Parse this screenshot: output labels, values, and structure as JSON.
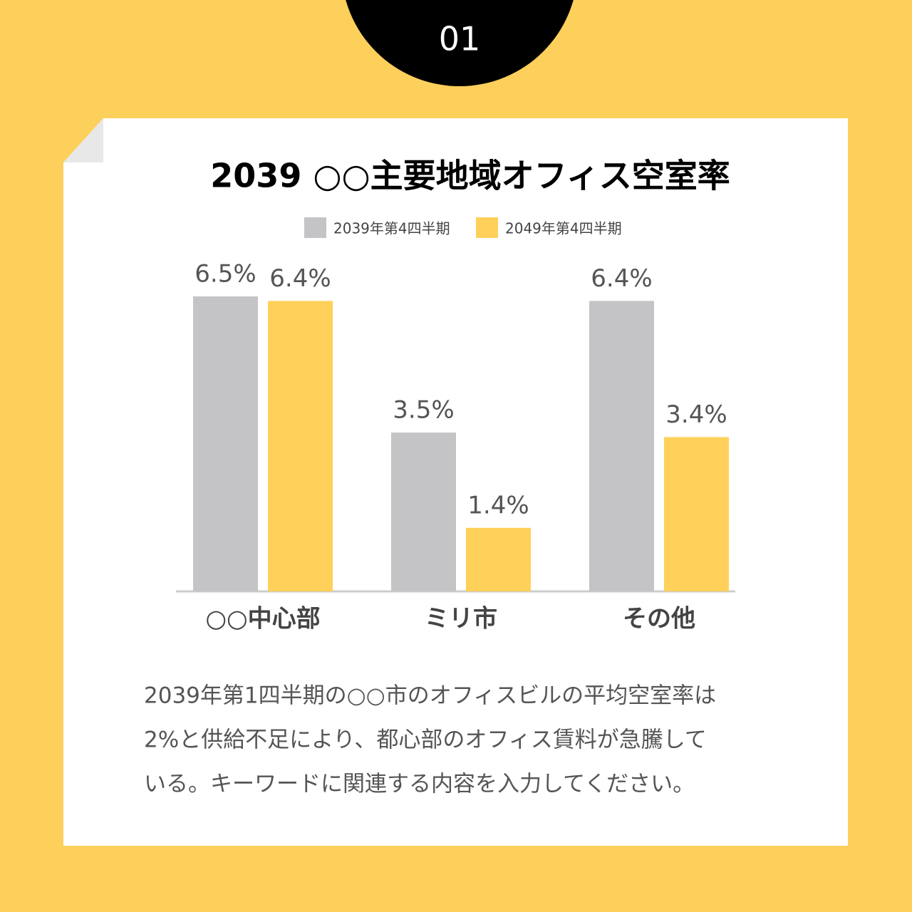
{
  "badge": "01",
  "chart_data": {
    "type": "bar",
    "title": "2039 ○○主要地域オフィス空室率",
    "categories": [
      "○○中心部",
      "ミリ市",
      "その他"
    ],
    "series": [
      {
        "name": "2039年第4四半期",
        "color": "#c4c3c5",
        "values": [
          6.5,
          3.5,
          6.4
        ],
        "value_labels": [
          "6.5%",
          "3.5%",
          "6.4%"
        ]
      },
      {
        "name": "2049年第4四半期",
        "color": "#ffd05a",
        "values": [
          6.4,
          1.4,
          3.4
        ],
        "value_labels": [
          "6.4%",
          "1.4%",
          "3.4%"
        ]
      }
    ],
    "legend": "top"
  },
  "body": {
    "lines": [
      "2039年第1四半期の○○市のオフィスビルの平均空室率は",
      "2%と供給不足により、都心部のオフィス賃料が急騰して",
      "いる。キーワードに関連する内容を入力してください。"
    ]
  }
}
